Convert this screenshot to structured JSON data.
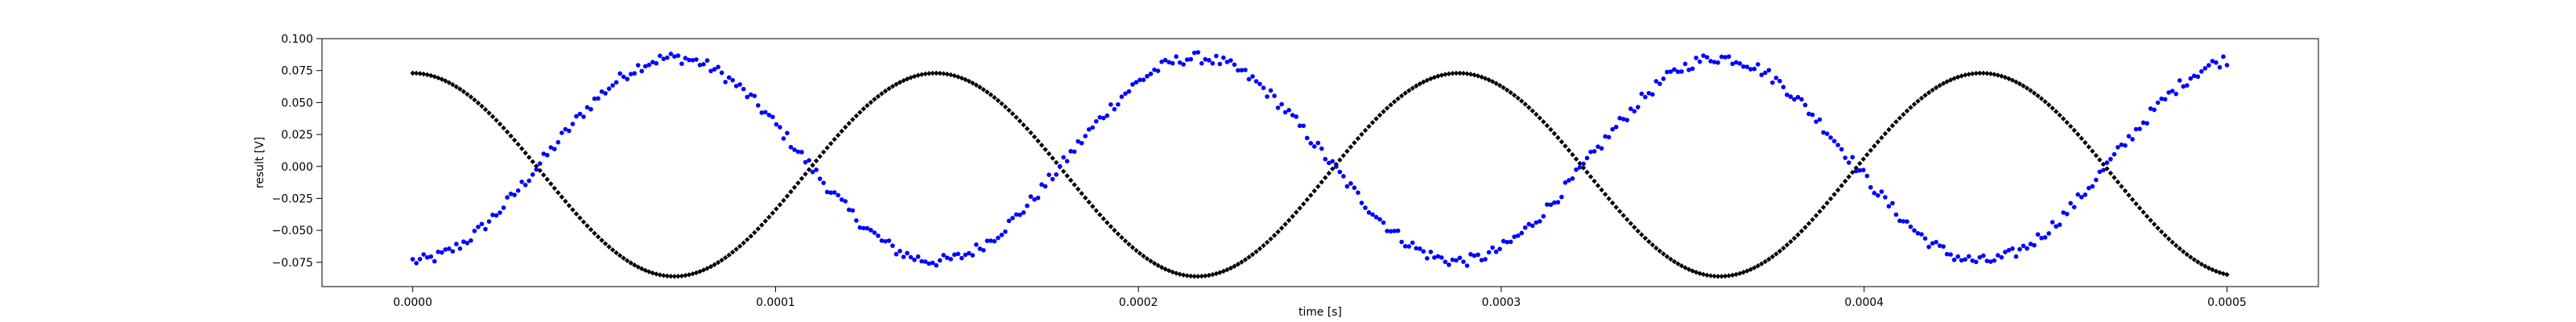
{
  "chart_data": {
    "type": "scatter",
    "xlabel": "time [s]",
    "ylabel": "result [V]",
    "xlim": [
      -2.5e-05,
      0.0005252
    ],
    "ylim": [
      -0.094,
      0.1
    ],
    "grid": false,
    "legend": "none",
    "x_ticks": [
      0.0,
      0.0001,
      0.0002,
      0.0003,
      0.0004,
      0.0005
    ],
    "x_tick_labels": [
      "0.0000",
      "0.0001",
      "0.0002",
      "0.0003",
      "0.0004",
      "0.0005"
    ],
    "y_ticks": [
      -0.075,
      -0.05,
      -0.025,
      0.0,
      0.025,
      0.05,
      0.075,
      0.1
    ],
    "y_tick_labels": [
      "−0.075",
      "−0.050",
      "−0.025",
      "0.000",
      "0.025",
      "0.050",
      "0.075",
      "0.100"
    ],
    "series": [
      {
        "color": "#000000",
        "marker": "diamond",
        "t_range": [
          0.0,
          0.0005
        ],
        "points": 500,
        "waveform": {
          "type": "cosine",
          "center": -0.0065,
          "amplitude": 0.0795,
          "frequency_hz": 6940,
          "phase_rad": 0.0
        }
      },
      {
        "color": "#0000ff",
        "marker": "dot",
        "t_range": [
          0.0,
          0.0005
        ],
        "points": 500,
        "waveform": {
          "type": "cosine",
          "center": 0.0055,
          "amplitude": -0.0795,
          "frequency_hz": 6940,
          "phase_rad": 0.0,
          "noise_amplitude": 0.0045
        }
      }
    ]
  }
}
